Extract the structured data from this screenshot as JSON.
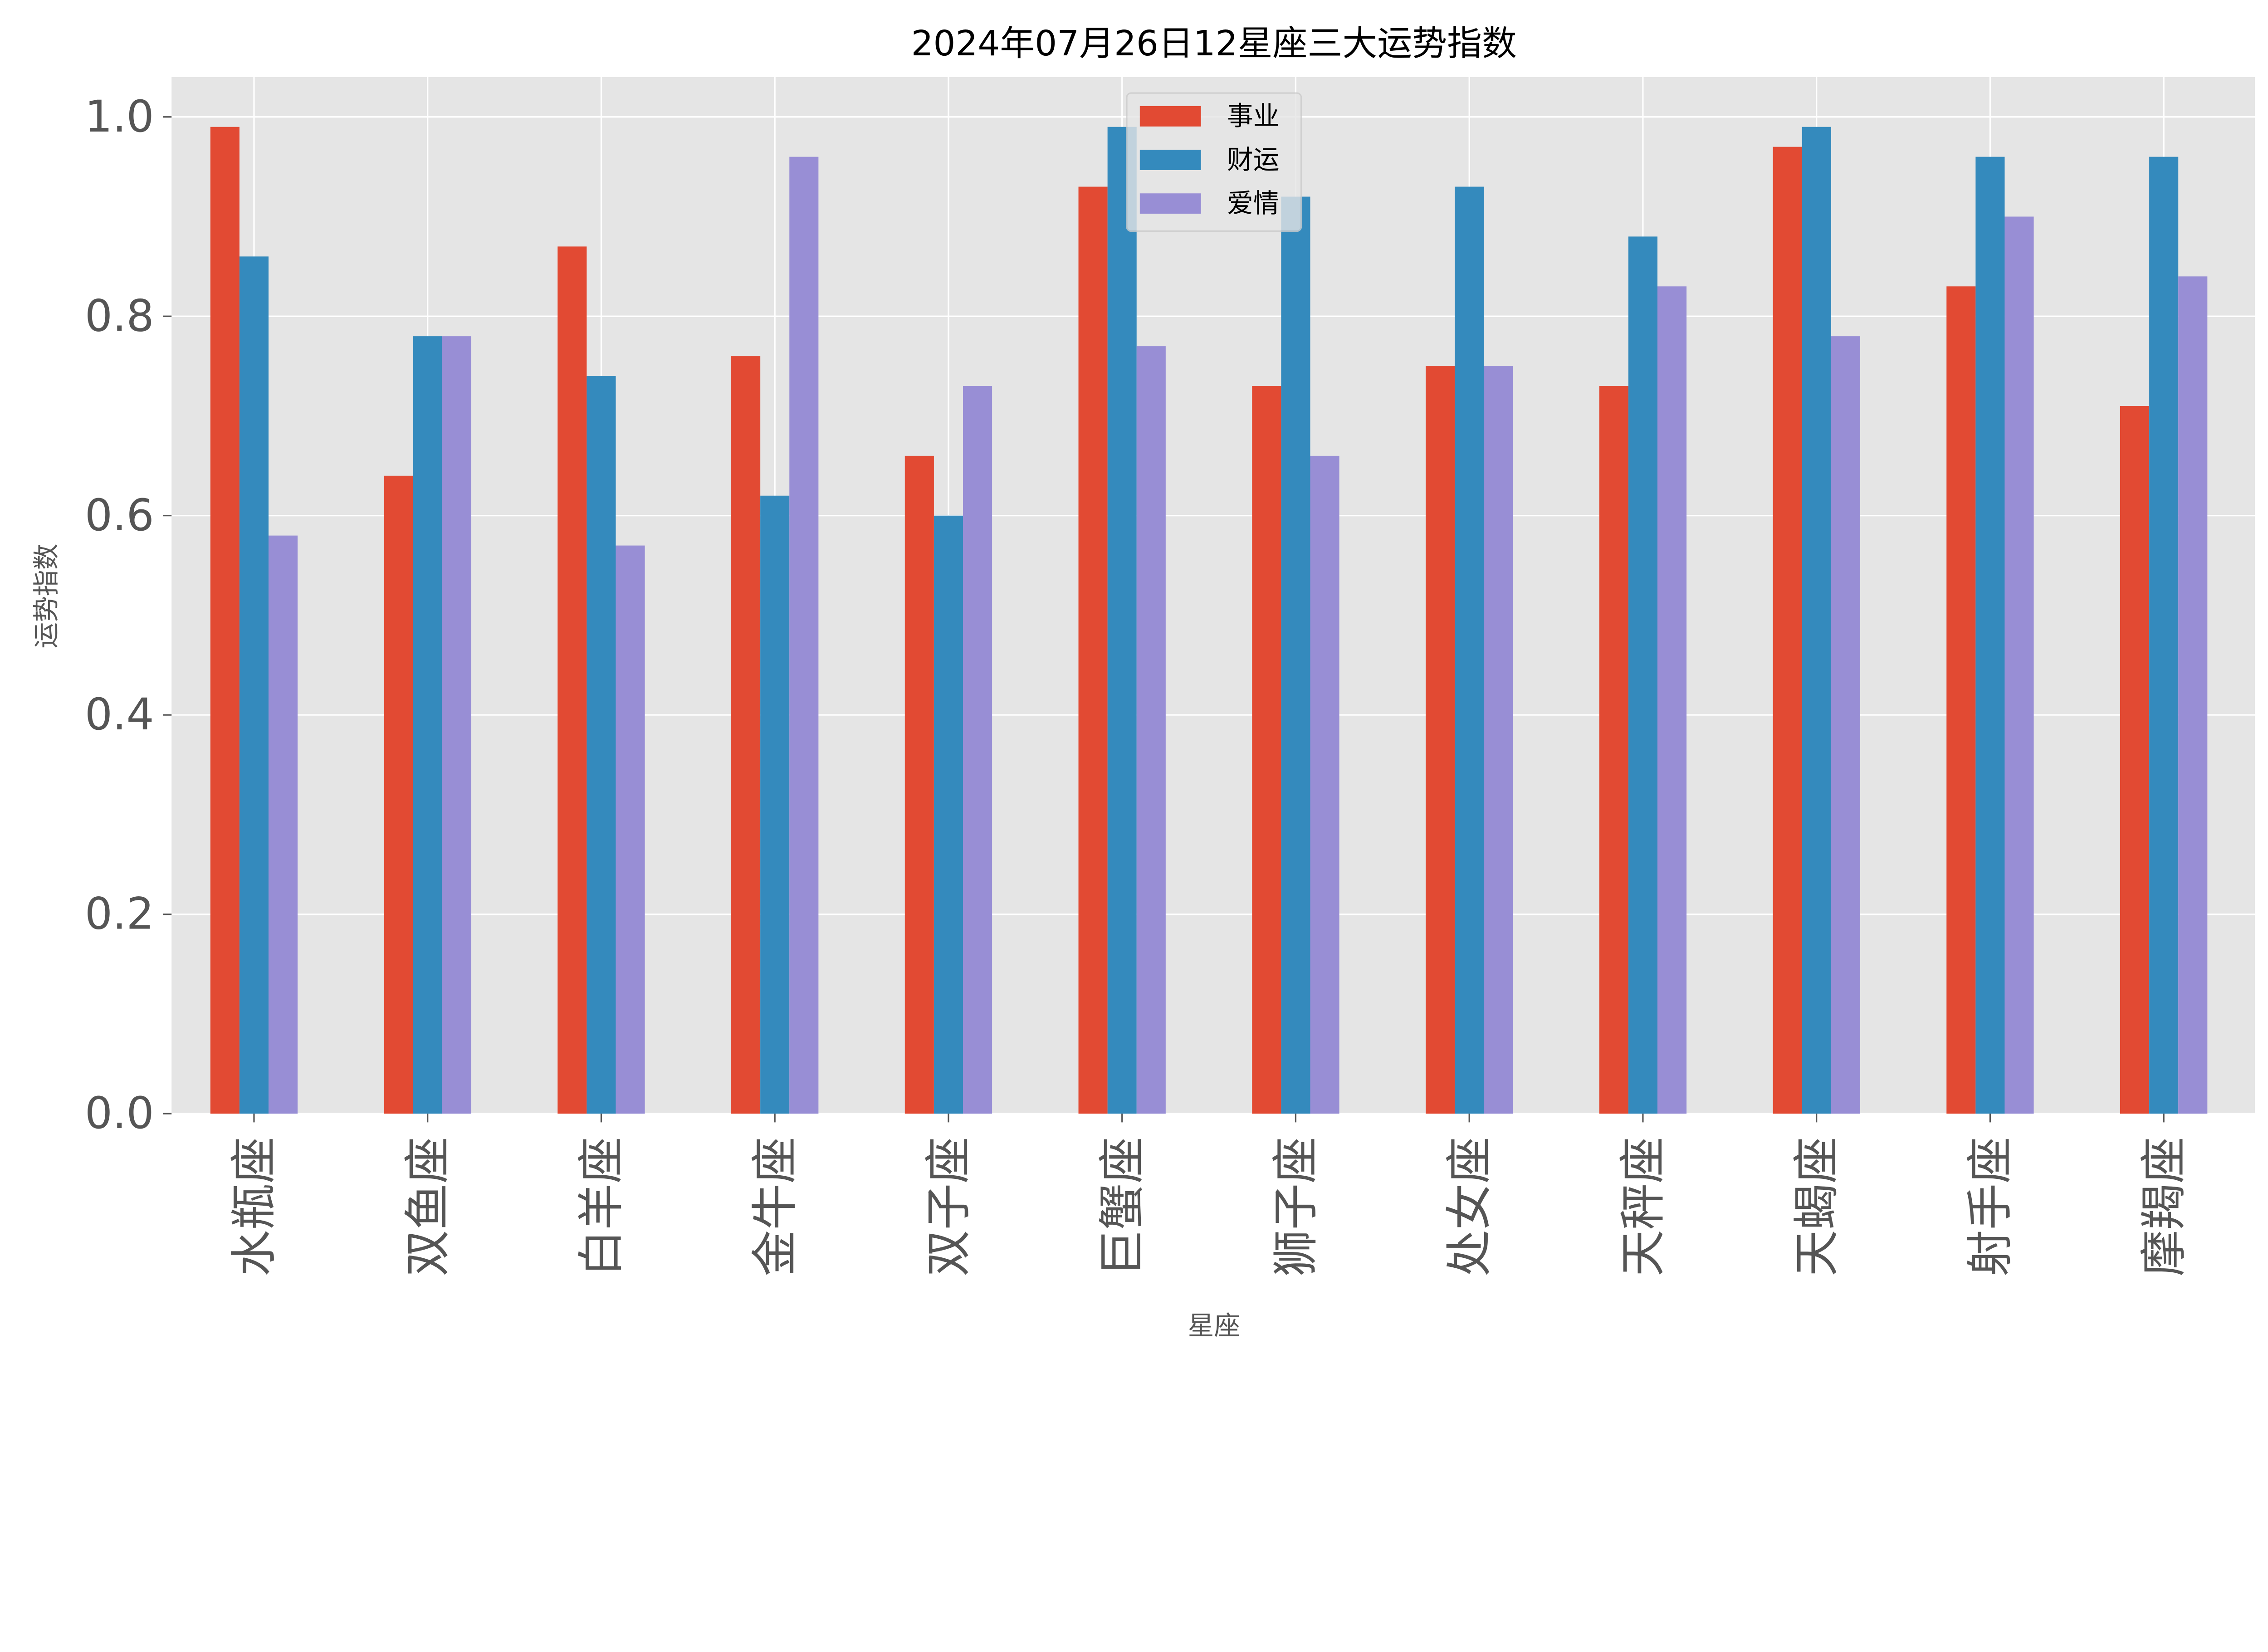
{
  "chart_data": {
    "type": "bar",
    "title": "2024年07月26日12星座三大运势指数",
    "xlabel": "星座",
    "ylabel": "运势指数",
    "ylim": [
      0,
      1.04
    ],
    "yticks": [
      "0.0",
      "0.2",
      "0.4",
      "0.6",
      "0.8",
      "1.0"
    ],
    "grid": true,
    "legend_position": "top-center",
    "categories": [
      "水瓶座",
      "双鱼座",
      "白羊座",
      "金牛座",
      "双子座",
      "巨蟹座",
      "狮子座",
      "处女座",
      "天秤座",
      "天蝎座",
      "射手座",
      "摩羯座"
    ],
    "series": [
      {
        "name": "事业",
        "color": "#E24A33",
        "values": [
          0.99,
          0.64,
          0.87,
          0.76,
          0.66,
          0.93,
          0.73,
          0.75,
          0.73,
          0.97,
          0.83,
          0.71
        ]
      },
      {
        "name": "财运",
        "color": "#348ABD",
        "values": [
          0.86,
          0.78,
          0.74,
          0.62,
          0.6,
          0.99,
          0.92,
          0.93,
          0.88,
          0.99,
          0.96,
          0.96
        ]
      },
      {
        "name": "爱情",
        "color": "#988ED5",
        "values": [
          0.58,
          0.78,
          0.57,
          0.96,
          0.73,
          0.77,
          0.66,
          0.75,
          0.83,
          0.78,
          0.9,
          0.84
        ]
      }
    ],
    "background_color": "#E5E5E5",
    "grid_color": "#FFFFFF"
  }
}
